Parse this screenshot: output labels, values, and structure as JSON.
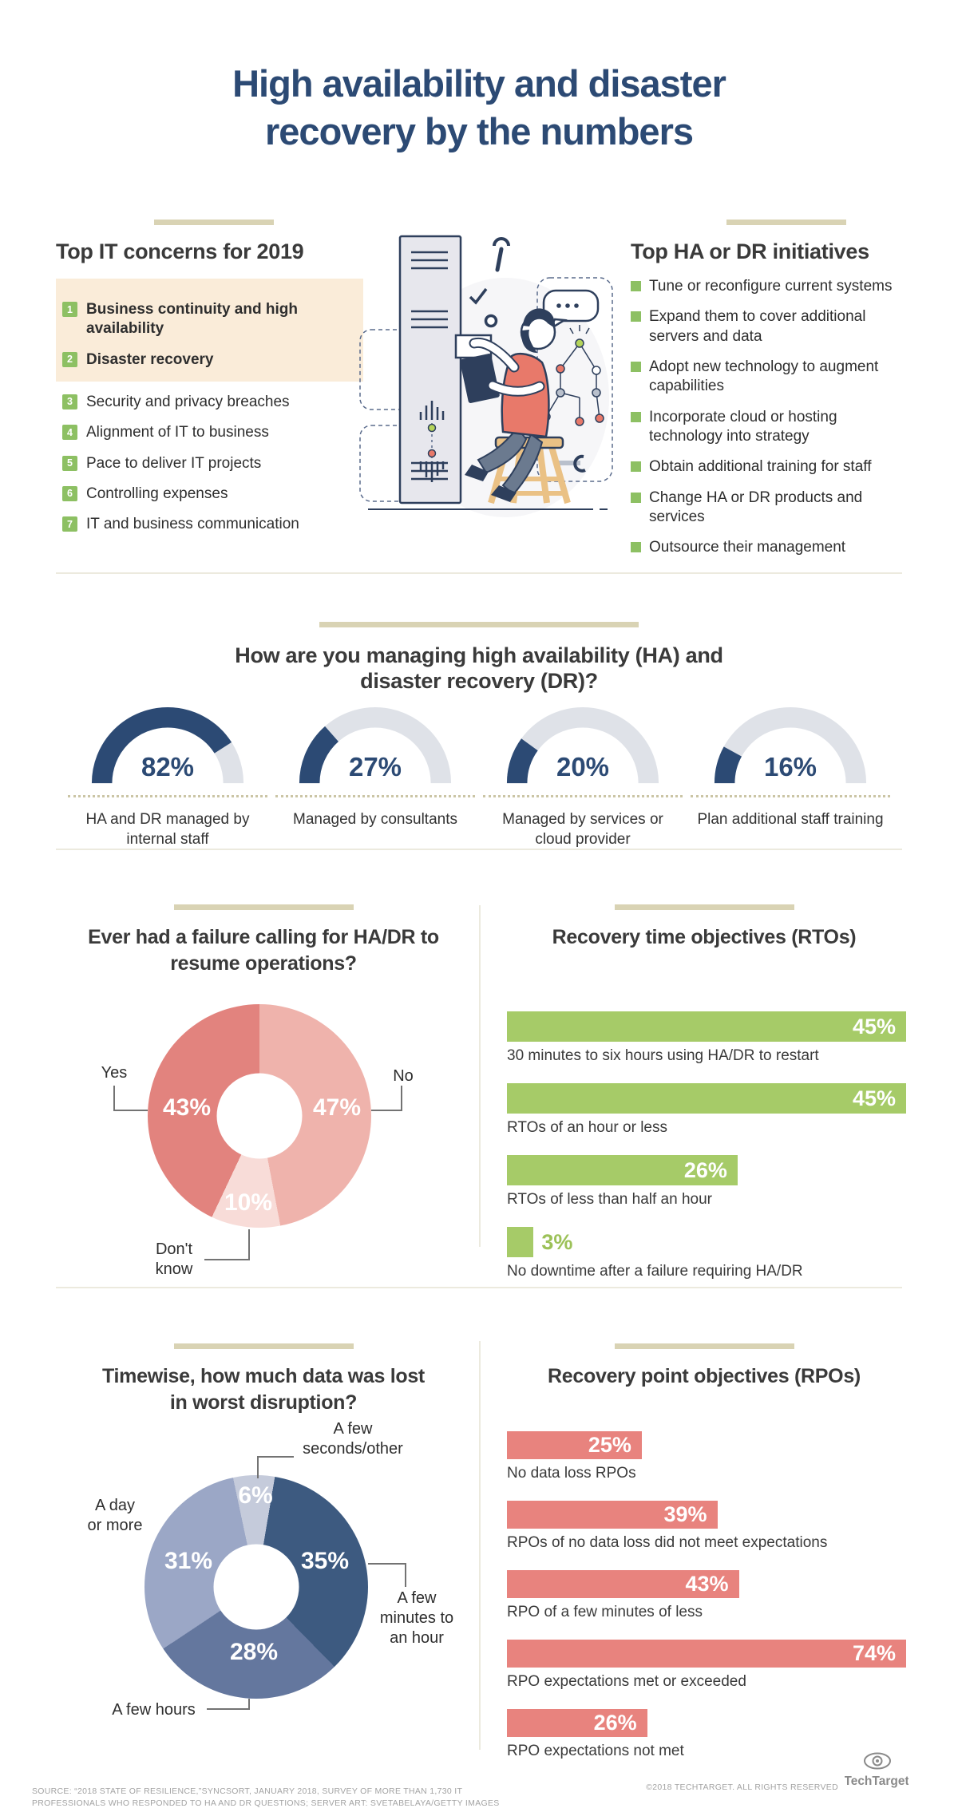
{
  "title": "High availability and disaster recovery by the numbers",
  "colors": {
    "navy": "#2c4a74",
    "heading_gray": "#3a3a3a",
    "green": "#a6cb68",
    "badge_green": "#8dc063",
    "salmon": "#e8837e",
    "pink": "#efb3ac",
    "pale_pink": "#f8dcd8",
    "tan_rule": "#d9d3b4",
    "highlight": "#faecd9",
    "gauge_track": "#dfe2e8"
  },
  "top_concerns": {
    "heading": "Top IT concerns for 2019",
    "items": [
      {
        "num": "1",
        "label": "Business continuity and high availability",
        "highlight": true
      },
      {
        "num": "2",
        "label": "Disaster recovery",
        "highlight": true
      },
      {
        "num": "3",
        "label": "Security and privacy breaches",
        "highlight": false
      },
      {
        "num": "4",
        "label": "Alignment of IT to business",
        "highlight": false
      },
      {
        "num": "5",
        "label": "Pace to deliver IT projects",
        "highlight": false
      },
      {
        "num": "6",
        "label": "Controlling expenses",
        "highlight": false
      },
      {
        "num": "7",
        "label": "IT and business communication",
        "highlight": false
      }
    ]
  },
  "initiatives": {
    "heading": "Top HA or DR initiatives",
    "items": [
      "Tune or reconfigure current systems",
      "Expand them to cover additional servers and data",
      "Adopt new technology to augment capabilities",
      "Incorporate cloud or hosting technology into strategy",
      "Obtain additional training for staff",
      "Change HA or DR products and services",
      "Outsource their management"
    ]
  },
  "chart_data": [
    {
      "id": "managing_gauges",
      "type": "gauge",
      "title": "How are you managing high availability (HA) and disaster recovery (DR)?",
      "unit": "%",
      "range": [
        0,
        100
      ],
      "fill_color": "#2c4a74",
      "track_color": "#dfe2e8",
      "items": [
        {
          "value": 82,
          "label": "HA and DR managed by internal staff"
        },
        {
          "value": 27,
          "label": "Managed by consultants"
        },
        {
          "value": 20,
          "label": "Managed by services or cloud provider"
        },
        {
          "value": 16,
          "label": "Plan additional staff training"
        }
      ]
    },
    {
      "id": "failure_donut",
      "type": "pie",
      "donut": true,
      "title": "Ever had a failure calling for HA/DR to resume operations?",
      "unit": "%",
      "start_angle": 0,
      "slices": [
        {
          "label": "No",
          "value": 47,
          "color": "#efb3ac"
        },
        {
          "label": "Don't know",
          "value": 10,
          "color": "#f8dcd8"
        },
        {
          "label": "Yes",
          "value": 43,
          "color": "#e2837e"
        }
      ]
    },
    {
      "id": "rto_bars",
      "type": "bar",
      "title": "Recovery time objectives (RTOs)",
      "unit": "%",
      "scale_max": 45,
      "bar_color": "#a6cb68",
      "value_text_color_outside": "#9cc158",
      "bars": [
        {
          "value": 45,
          "label": "30 minutes to six hours using HA/DR to restart"
        },
        {
          "value": 45,
          "label": "RTOs of an hour or less"
        },
        {
          "value": 26,
          "label": "RTOs of less than half an hour"
        },
        {
          "value": 3,
          "label": "No downtime after a failure requiring HA/DR",
          "value_outside": true
        }
      ]
    },
    {
      "id": "data_loss_donut",
      "type": "pie",
      "donut": true,
      "title": "Timewise, how much data was lost in worst disruption?",
      "unit": "%",
      "start_angle": -12,
      "slices": [
        {
          "label": "A few seconds/other",
          "value": 6,
          "color": "#c5cbdb"
        },
        {
          "label": "A few minutes to an hour",
          "value": 35,
          "color": "#3d5a80"
        },
        {
          "label": "A few hours",
          "value": 28,
          "color": "#64779e"
        },
        {
          "label": "A day or more",
          "value": 31,
          "color": "#9ba7c6"
        }
      ]
    },
    {
      "id": "rpo_bars",
      "type": "bar",
      "title": "Recovery point objectives (RPOs)",
      "unit": "%",
      "scale_max": 74,
      "bar_color": "#e8837e",
      "bars": [
        {
          "value": 25,
          "label": "No data loss RPOs"
        },
        {
          "value": 39,
          "label": "RPOs of no data loss did not meet expectations"
        },
        {
          "value": 43,
          "label": "RPO of a few minutes of less"
        },
        {
          "value": 74,
          "label": "RPO expectations met or exceeded"
        },
        {
          "value": 26,
          "label": "RPO expectations not met"
        }
      ]
    }
  ],
  "footer": {
    "source_line1": "SOURCE: “2018 STATE OF RESILIENCE,”SYNCSORT, JANUARY 2018, SURVEY OF MORE THAN 1,730 IT",
    "source_line2": "PROFESSIONALS WHO RESPONDED TO HA AND DR QUESTIONS; SERVER ART: SVETABELAYA/GETTY IMAGES",
    "copyright": "©2018 TECHTARGET. ALL RIGHTS RESERVED",
    "brand": "TechTarget"
  }
}
